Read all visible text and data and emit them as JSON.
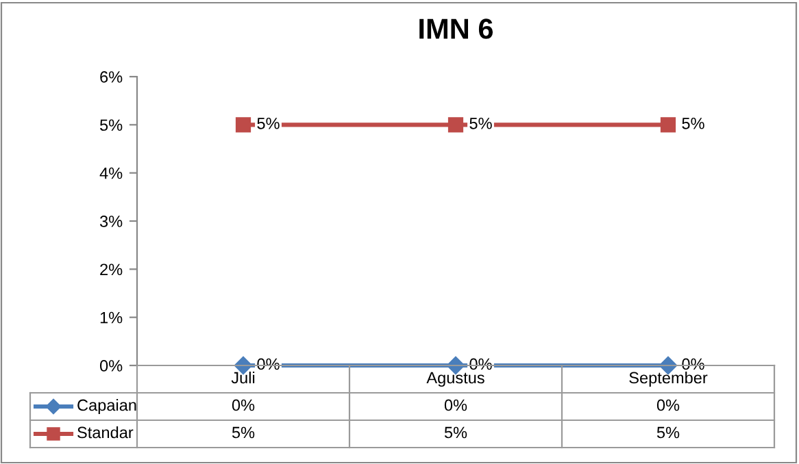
{
  "chart_data": {
    "type": "line",
    "title": "IMN 6",
    "categories": [
      "Juli",
      "Agustus",
      "September"
    ],
    "series": [
      {
        "name": "Capaian",
        "color": "#4a7ebb",
        "marker": "diamond",
        "values": [
          0,
          0,
          0
        ],
        "value_labels": [
          "0%",
          "0%",
          "0%"
        ]
      },
      {
        "name": "Standar",
        "color": "#be4b48",
        "marker": "square",
        "values": [
          5,
          5,
          5
        ],
        "value_labels": [
          "5%",
          "5%",
          "5%"
        ]
      }
    ],
    "ylim": [
      0,
      6
    ],
    "yticks": [
      {
        "value": 0,
        "label": "0%"
      },
      {
        "value": 1,
        "label": "1%"
      },
      {
        "value": 2,
        "label": "2%"
      },
      {
        "value": 3,
        "label": "3%"
      },
      {
        "value": 4,
        "label": "4%"
      },
      {
        "value": 5,
        "label": "5%"
      },
      {
        "value": 6,
        "label": "6%"
      }
    ],
    "grid": false,
    "legend": "bottom",
    "line_style": "solid"
  }
}
